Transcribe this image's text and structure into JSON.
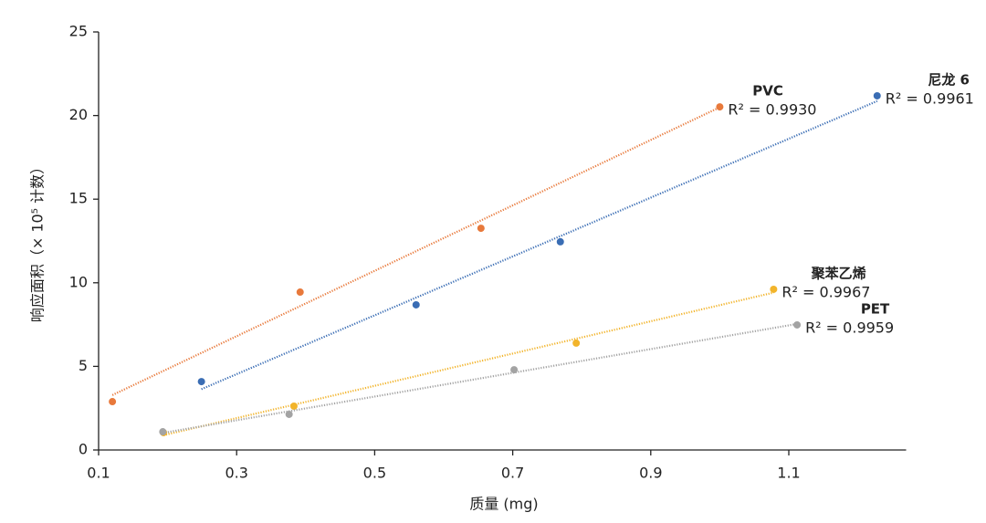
{
  "chart_data": {
    "type": "scatter",
    "x_label": "质量 (mg)",
    "y_label": "响应面积（× 10⁵ 计数）",
    "xlim": [
      0.1,
      1.27
    ],
    "xticks": [
      {
        "value": 0.1,
        "label": "0.1"
      },
      {
        "value": 0.3,
        "label": "0.3"
      },
      {
        "value": 0.5,
        "label": "0.5"
      },
      {
        "value": 0.7,
        "label": "0.7"
      },
      {
        "value": 0.9,
        "label": "0.9"
      },
      {
        "value": 1.1,
        "label": "1.1"
      }
    ],
    "ylim": [
      0,
      25
    ],
    "yticks": [
      0,
      5,
      10,
      15,
      20,
      25
    ],
    "trendline": true,
    "series": [
      {
        "name": "PVC",
        "color": "#e8793b",
        "r2_label": "R² = 0.9930",
        "x": [
          0.12,
          0.392,
          0.654,
          1.0
        ],
        "values": [
          2.89,
          9.44,
          13.26,
          20.52
        ]
      },
      {
        "name": "尼龙 6",
        "color": "#3a6db4",
        "r2_label": "R² = 0.9961",
        "x": [
          0.249,
          0.56,
          0.769,
          1.228
        ],
        "values": [
          4.09,
          8.68,
          12.45,
          21.18
        ]
      },
      {
        "name": "聚苯乙烯",
        "color": "#f2b42b",
        "r2_label": "R² = 0.9967",
        "x": [
          0.194,
          0.383,
          0.792,
          1.078
        ],
        "values": [
          1.04,
          2.62,
          6.39,
          9.61
        ]
      },
      {
        "name": "PET",
        "color": "#a3a3a3",
        "r2_label": "R² = 0.9959",
        "x": [
          0.193,
          0.376,
          0.702,
          1.112
        ],
        "values": [
          1.09,
          2.13,
          4.8,
          7.48
        ]
      }
    ]
  }
}
